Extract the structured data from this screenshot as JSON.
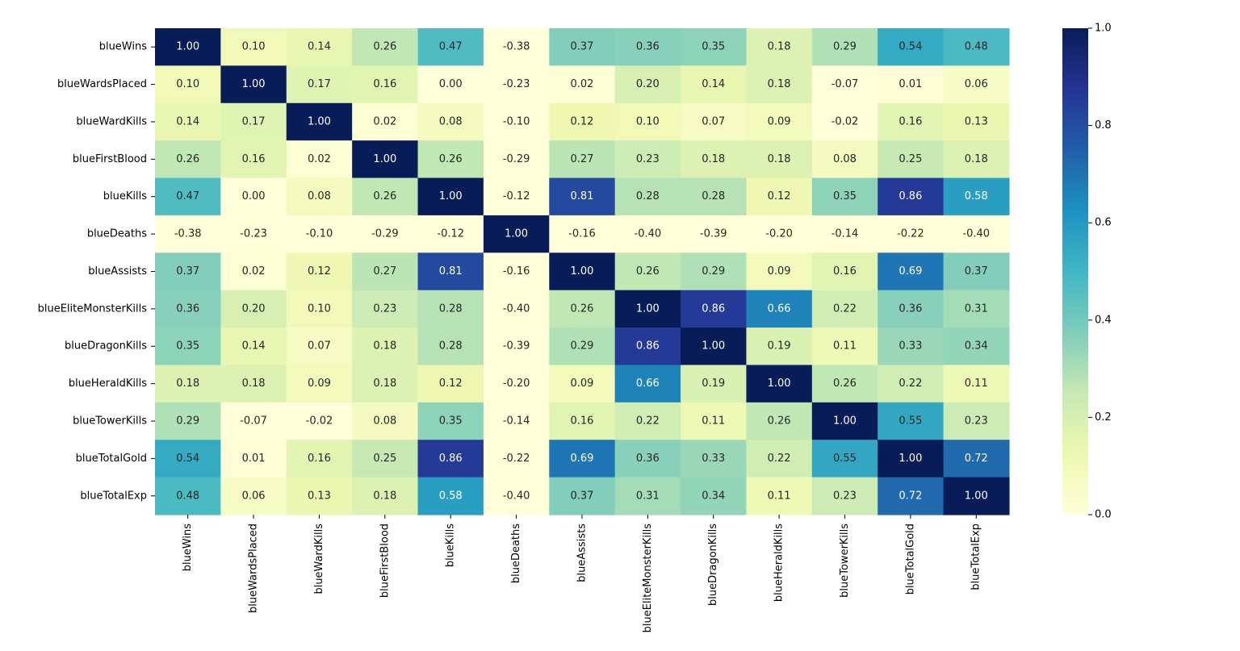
{
  "chart_data": {
    "type": "heatmap",
    "title": "",
    "xlabel": "",
    "ylabel": "",
    "labels": [
      "blueWins",
      "blueWardsPlaced",
      "blueWardKills",
      "blueFirstBlood",
      "blueKills",
      "blueDeaths",
      "blueAssists",
      "blueEliteMonsterKills",
      "blueDragonKills",
      "blueHeraldKills",
      "blueTowerKills",
      "blueTotalGold",
      "blueTotalExp"
    ],
    "matrix": [
      [
        1.0,
        0.1,
        0.14,
        0.26,
        0.47,
        -0.38,
        0.37,
        0.36,
        0.35,
        0.18,
        0.29,
        0.54,
        0.48
      ],
      [
        0.1,
        1.0,
        0.17,
        0.16,
        0.0,
        -0.23,
        0.02,
        0.2,
        0.14,
        0.18,
        -0.07,
        0.01,
        0.06
      ],
      [
        0.14,
        0.17,
        1.0,
        0.02,
        0.08,
        -0.1,
        0.12,
        0.1,
        0.07,
        0.09,
        -0.02,
        0.16,
        0.13
      ],
      [
        0.26,
        0.16,
        0.02,
        1.0,
        0.26,
        -0.29,
        0.27,
        0.23,
        0.18,
        0.18,
        0.08,
        0.25,
        0.18
      ],
      [
        0.47,
        0.0,
        0.08,
        0.26,
        1.0,
        -0.12,
        0.81,
        0.28,
        0.28,
        0.12,
        0.35,
        0.86,
        0.58
      ],
      [
        -0.38,
        -0.23,
        -0.1,
        -0.29,
        -0.12,
        1.0,
        -0.16,
        -0.4,
        -0.39,
        -0.2,
        -0.14,
        -0.22,
        -0.4
      ],
      [
        0.37,
        0.02,
        0.12,
        0.27,
        0.81,
        -0.16,
        1.0,
        0.26,
        0.29,
        0.09,
        0.16,
        0.69,
        0.37
      ],
      [
        0.36,
        0.2,
        0.1,
        0.23,
        0.28,
        -0.4,
        0.26,
        1.0,
        0.86,
        0.66,
        0.22,
        0.36,
        0.31
      ],
      [
        0.35,
        0.14,
        0.07,
        0.18,
        0.28,
        -0.39,
        0.29,
        0.86,
        1.0,
        0.19,
        0.11,
        0.33,
        0.34
      ],
      [
        0.18,
        0.18,
        0.09,
        0.18,
        0.12,
        -0.2,
        0.09,
        0.66,
        0.19,
        1.0,
        0.26,
        0.22,
        0.11
      ],
      [
        0.29,
        -0.07,
        -0.02,
        0.08,
        0.35,
        -0.14,
        0.16,
        0.22,
        0.11,
        0.26,
        1.0,
        0.55,
        0.23
      ],
      [
        0.54,
        0.01,
        0.16,
        0.25,
        0.86,
        -0.22,
        0.69,
        0.36,
        0.33,
        0.22,
        0.55,
        1.0,
        0.72
      ],
      [
        0.48,
        0.06,
        0.13,
        0.18,
        0.58,
        -0.4,
        0.37,
        0.31,
        0.34,
        0.11,
        0.23,
        0.72,
        1.0
      ]
    ],
    "colormap": "YlGnBu",
    "vmin": 0.0,
    "vmax": 1.0,
    "colorbar_ticks": [
      0.0,
      0.2,
      0.4,
      0.6,
      0.8,
      1.0
    ],
    "colorbar_tick_labels": [
      "0.0",
      "0.2",
      "0.4",
      "0.6",
      "0.8",
      "1.0"
    ],
    "annotation_format": "2 decimals",
    "colorbar_position": "right"
  }
}
